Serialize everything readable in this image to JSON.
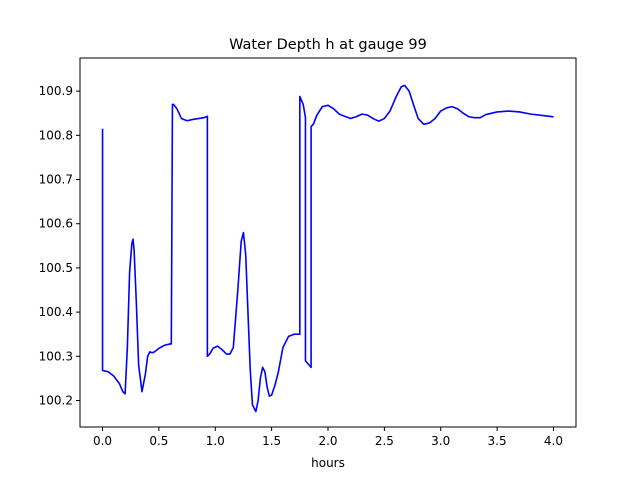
{
  "chart_data": {
    "type": "line",
    "title": "Water Depth h at gauge 99",
    "xlabel": "hours",
    "ylabel": "",
    "xlim": [
      -0.2,
      4.2
    ],
    "ylim": [
      100.14,
      100.975
    ],
    "xticks": [
      0.0,
      0.5,
      1.0,
      1.5,
      2.0,
      2.5,
      3.0,
      3.5,
      4.0
    ],
    "xtick_labels": [
      "0.0",
      "0.5",
      "1.0",
      "1.5",
      "2.0",
      "2.5",
      "3.0",
      "3.5",
      "4.0"
    ],
    "yticks": [
      100.2,
      100.3,
      100.4,
      100.5,
      100.6,
      100.7,
      100.8,
      100.9
    ],
    "ytick_labels": [
      "100.2",
      "100.3",
      "100.4",
      "100.5",
      "100.6",
      "100.7",
      "100.8",
      "100.9"
    ],
    "grid": false,
    "series": [
      {
        "color": "#0000ff",
        "x": [
          0.0,
          0.0,
          0.0,
          0.05,
          0.1,
          0.15,
          0.18,
          0.2,
          0.22,
          0.24,
          0.26,
          0.27,
          0.28,
          0.3,
          0.32,
          0.35,
          0.38,
          0.4,
          0.42,
          0.44,
          0.46,
          0.5,
          0.55,
          0.6,
          0.61,
          0.62,
          0.63,
          0.66,
          0.7,
          0.75,
          0.8,
          0.85,
          0.9,
          0.93,
          0.93,
          0.95,
          0.98,
          1.02,
          1.06,
          1.1,
          1.13,
          1.16,
          1.2,
          1.23,
          1.25,
          1.27,
          1.29,
          1.31,
          1.33,
          1.36,
          1.38,
          1.4,
          1.42,
          1.44,
          1.46,
          1.48,
          1.5,
          1.53,
          1.56,
          1.6,
          1.65,
          1.7,
          1.73,
          1.75,
          1.75,
          1.78,
          1.8,
          1.8,
          1.85,
          1.85,
          1.87,
          1.9,
          1.95,
          2.0,
          2.05,
          2.1,
          2.15,
          2.2,
          2.25,
          2.3,
          2.35,
          2.4,
          2.45,
          2.5,
          2.55,
          2.6,
          2.65,
          2.68,
          2.72,
          2.76,
          2.8,
          2.85,
          2.9,
          2.95,
          3.0,
          3.05,
          3.1,
          3.15,
          3.2,
          3.25,
          3.3,
          3.35,
          3.4,
          3.5,
          3.6,
          3.7,
          3.8,
          3.9,
          4.0
        ],
        "y": [
          100.815,
          100.27,
          100.268,
          100.265,
          100.255,
          100.238,
          100.22,
          100.215,
          100.32,
          100.49,
          100.555,
          100.565,
          100.54,
          100.42,
          100.28,
          100.22,
          100.26,
          100.3,
          100.31,
          100.308,
          100.31,
          100.318,
          100.325,
          100.328,
          100.328,
          100.87,
          100.87,
          100.86,
          100.838,
          100.833,
          100.836,
          100.838,
          100.84,
          100.843,
          100.3,
          100.305,
          100.318,
          100.323,
          100.315,
          100.305,
          100.305,
          100.32,
          100.45,
          100.56,
          100.58,
          100.53,
          100.4,
          100.27,
          100.19,
          100.175,
          100.2,
          100.25,
          100.275,
          100.265,
          100.23,
          100.21,
          100.212,
          100.235,
          100.265,
          100.32,
          100.345,
          100.35,
          100.35,
          100.35,
          100.888,
          100.87,
          100.84,
          100.29,
          100.275,
          100.82,
          100.825,
          100.845,
          100.865,
          100.868,
          100.86,
          100.848,
          100.843,
          100.838,
          100.842,
          100.848,
          100.846,
          100.838,
          100.832,
          100.838,
          100.855,
          100.885,
          100.91,
          100.913,
          100.9,
          100.868,
          100.838,
          100.825,
          100.828,
          100.838,
          100.855,
          100.862,
          100.865,
          100.86,
          100.85,
          100.842,
          100.84,
          100.84,
          100.847,
          100.853,
          100.855,
          100.853,
          100.848,
          100.845,
          100.842
        ]
      }
    ]
  }
}
